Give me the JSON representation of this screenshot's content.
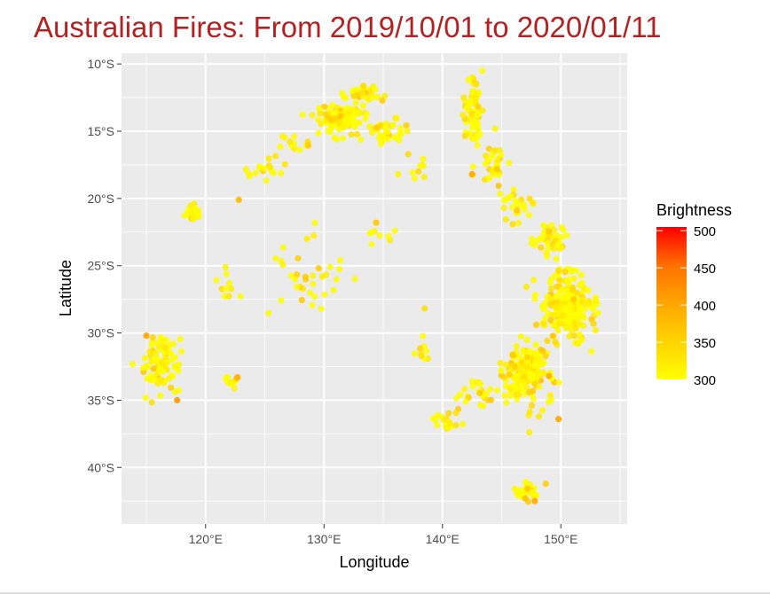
{
  "title": "Australian Fires: From 2019/10/01 to 2020/01/11",
  "chart_data": {
    "type": "scatter",
    "title": "Australian Fires: From 2019/10/01 to 2020/01/11",
    "xlabel": "Longitude",
    "ylabel": "Latitude",
    "xlim": [
      112.9,
      155.6
    ],
    "ylim": [
      -44.2,
      -9.2
    ],
    "x_ticks": [
      120,
      130,
      140,
      150
    ],
    "x_tick_labels": [
      "120°E",
      "130°E",
      "140°E",
      "150°E"
    ],
    "y_ticks": [
      -10,
      -15,
      -20,
      -25,
      -30,
      -35,
      -40
    ],
    "y_tick_labels": [
      "10°S",
      "15°S",
      "20°S",
      "25°S",
      "30°S",
      "35°S",
      "40°S"
    ],
    "grid": true,
    "legend": {
      "title": "Brightness",
      "placement": "right",
      "ticks": [
        300,
        350,
        400,
        450,
        500
      ],
      "tick_labels": [
        "300",
        "350",
        "400",
        "450",
        "500"
      ],
      "range": [
        300,
        505
      ],
      "low_color": "#ffff00",
      "mid_color": "#ffa500",
      "high_color": "#ff0000"
    },
    "colors": {
      "panel": "#ebebeb",
      "grid": "#ffffff",
      "title": "#b22222"
    },
    "clusters": [
      {
        "x": 131.4,
        "y": -14.1,
        "sx": 1.7,
        "sy": 0.9,
        "n": 120
      },
      {
        "x": 133.2,
        "y": -12.2,
        "sx": 1.2,
        "sy": 0.5,
        "n": 30
      },
      {
        "x": 135.3,
        "y": -15.0,
        "sx": 1.2,
        "sy": 0.9,
        "n": 40
      },
      {
        "x": 142.6,
        "y": -13.5,
        "sx": 0.6,
        "sy": 2.0,
        "n": 80
      },
      {
        "x": 144.3,
        "y": -17.5,
        "sx": 0.8,
        "sy": 1.2,
        "n": 30
      },
      {
        "x": 146.3,
        "y": -20.5,
        "sx": 1.0,
        "sy": 1.0,
        "n": 25
      },
      {
        "x": 149.2,
        "y": -23.2,
        "sx": 1.4,
        "sy": 1.0,
        "n": 40
      },
      {
        "x": 150.5,
        "y": -28.0,
        "sx": 2.0,
        "sy": 2.2,
        "n": 220
      },
      {
        "x": 147.2,
        "y": -33.0,
        "sx": 1.7,
        "sy": 2.1,
        "n": 190
      },
      {
        "x": 143.1,
        "y": -34.4,
        "sx": 1.3,
        "sy": 0.8,
        "n": 25
      },
      {
        "x": 147.3,
        "y": -41.7,
        "sx": 1.0,
        "sy": 0.6,
        "n": 30
      },
      {
        "x": 116.3,
        "y": -32.3,
        "sx": 1.3,
        "sy": 1.7,
        "n": 90
      },
      {
        "x": 118.9,
        "y": -21.1,
        "sx": 0.5,
        "sy": 0.5,
        "n": 25
      },
      {
        "x": 122.0,
        "y": -33.7,
        "sx": 0.6,
        "sy": 0.3,
        "n": 10
      },
      {
        "x": 125.0,
        "y": -17.5,
        "sx": 1.5,
        "sy": 0.8,
        "n": 18
      },
      {
        "x": 127.5,
        "y": -15.8,
        "sx": 1.0,
        "sy": 0.7,
        "n": 12
      },
      {
        "x": 137.6,
        "y": -17.5,
        "sx": 0.9,
        "sy": 1.2,
        "n": 10
      },
      {
        "x": 138.5,
        "y": -31.5,
        "sx": 0.8,
        "sy": 1.5,
        "n": 10
      },
      {
        "x": 140.3,
        "y": -36.5,
        "sx": 1.2,
        "sy": 0.8,
        "n": 18
      },
      {
        "x": 128.5,
        "y": -25.5,
        "sx": 2.5,
        "sy": 2.2,
        "n": 35
      },
      {
        "x": 134.5,
        "y": -22.5,
        "sx": 1.2,
        "sy": 1.0,
        "n": 8
      },
      {
        "x": 121.5,
        "y": -26.5,
        "sx": 1.0,
        "sy": 1.6,
        "n": 10
      }
    ],
    "hot_points": [
      {
        "x": 115.0,
        "y": -30.2,
        "b": 400
      },
      {
        "x": 117.6,
        "y": -35.0,
        "b": 410
      },
      {
        "x": 122.7,
        "y": -33.3,
        "b": 390
      },
      {
        "x": 142.5,
        "y": -18.2,
        "b": 400
      },
      {
        "x": 149.0,
        "y": -33.2,
        "b": 390
      },
      {
        "x": 149.8,
        "y": -36.4,
        "b": 400
      },
      {
        "x": 147.8,
        "y": -42.5,
        "b": 400
      },
      {
        "x": 147.0,
        "y": -42.3,
        "b": 370
      },
      {
        "x": 151.1,
        "y": -27.5,
        "b": 360
      },
      {
        "x": 144.6,
        "y": -17.8,
        "b": 360
      },
      {
        "x": 122.8,
        "y": -20.1,
        "b": 380
      },
      {
        "x": 134.4,
        "y": -21.8,
        "b": 360
      }
    ]
  }
}
